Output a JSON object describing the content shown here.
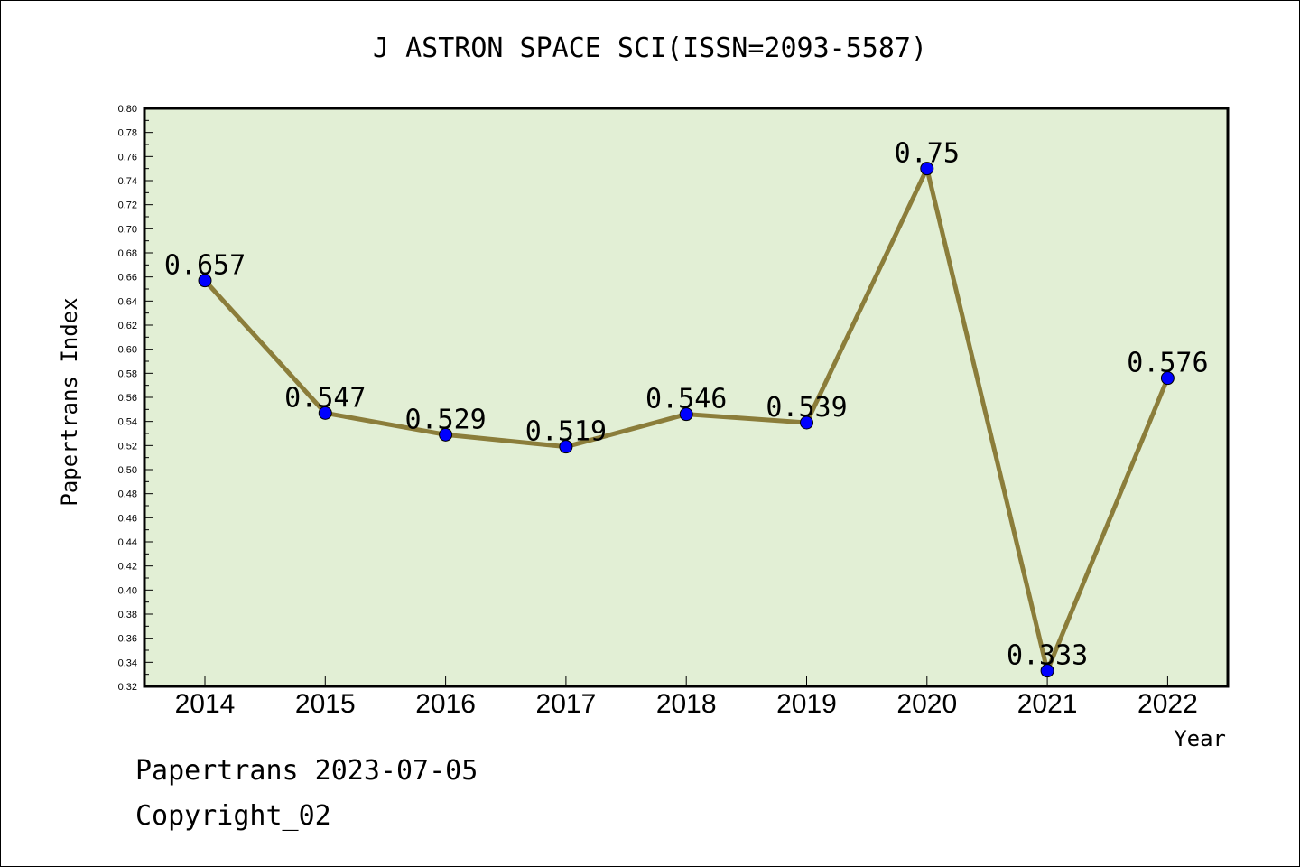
{
  "chart_data": {
    "type": "line",
    "title": "J ASTRON SPACE SCI(ISSN=2093-5587)",
    "xlabel": "Year",
    "ylabel": "Papertrans Index",
    "categories": [
      "2014",
      "2015",
      "2016",
      "2017",
      "2018",
      "2019",
      "2020",
      "2021",
      "2022"
    ],
    "series": [
      {
        "values": [
          0.657,
          0.547,
          0.529,
          0.519,
          0.546,
          0.539,
          0.75,
          0.333,
          0.576
        ],
        "labels": [
          "0.657",
          "0.547",
          "0.529",
          "0.519",
          "0.546",
          "0.539",
          "0.75",
          "0.333",
          "0.576"
        ]
      }
    ],
    "ylim": [
      0.32,
      0.8
    ],
    "ytick_step": 0.02,
    "grid": false,
    "plot_background": "#e2efd5",
    "line_color": "#8b7d3a",
    "marker_color": "#0000ff"
  },
  "footer": {
    "stamp": "Papertrans 2023-07-05",
    "copyright": "Copyright_02"
  }
}
